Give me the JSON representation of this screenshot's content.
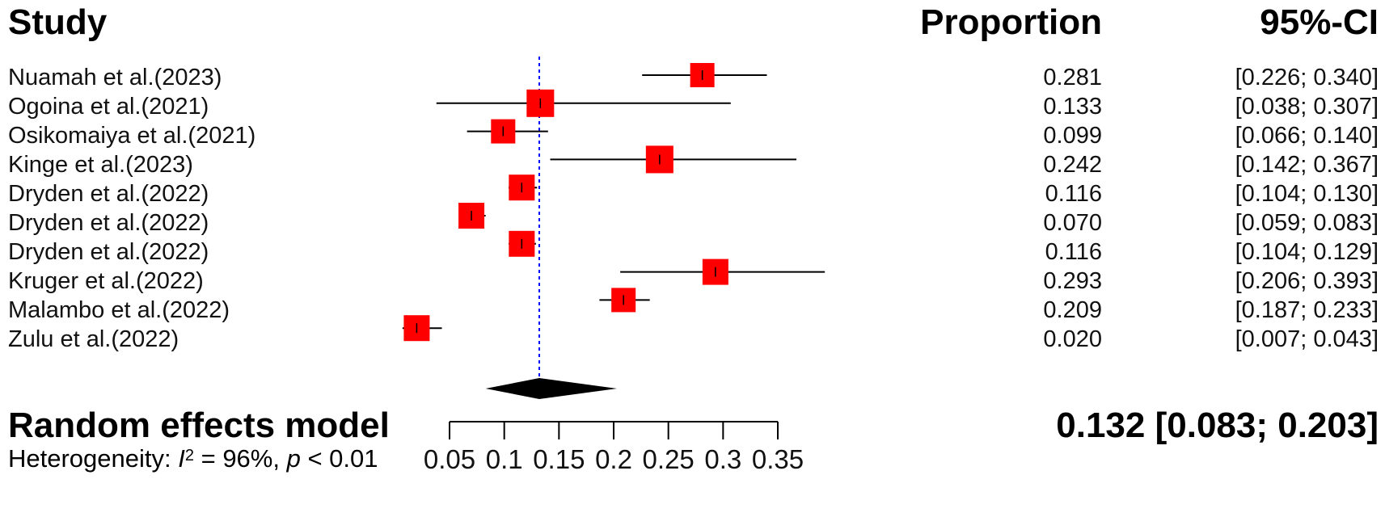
{
  "header": {
    "study": "Study",
    "proportion": "Proportion",
    "ci": "95%-CI"
  },
  "studies": [
    {
      "label": "Nuamah et al.(2023)",
      "value_text": "0.281",
      "ci_text": "[0.226; 0.340]"
    },
    {
      "label": "Ogoina et al.(2021)",
      "value_text": "0.133",
      "ci_text": "[0.038; 0.307]"
    },
    {
      "label": "Osikomaiya et al.(2021)",
      "value_text": "0.099",
      "ci_text": "[0.066; 0.140]"
    },
    {
      "label": "Kinge et al.(2023)",
      "value_text": "0.242",
      "ci_text": "[0.142; 0.367]"
    },
    {
      "label": "Dryden et al.(2022)",
      "value_text": "0.116",
      "ci_text": "[0.104; 0.130]"
    },
    {
      "label": "Dryden et al.(2022)",
      "value_text": "0.070",
      "ci_text": "[0.059; 0.083]"
    },
    {
      "label": "Dryden et al.(2022)",
      "value_text": "0.116",
      "ci_text": "[0.104; 0.129]"
    },
    {
      "label": "Kruger et al.(2022)",
      "value_text": "0.293",
      "ci_text": "[0.206; 0.393]"
    },
    {
      "label": "Malambo et al.(2022)",
      "value_text": "0.209",
      "ci_text": "[0.187; 0.233]"
    },
    {
      "label": "Zulu et al.(2022)",
      "value_text": "0.020",
      "ci_text": "[0.007; 0.043]"
    }
  ],
  "model": {
    "label": "Random effects model",
    "result_text": "0.132 [0.083; 0.203]",
    "heterogeneity_prefix": "Heterogeneity: ",
    "heterogeneity_i": "I",
    "heterogeneity_sup": "2",
    "heterogeneity_mid": " = 96%, ",
    "heterogeneity_p": "p",
    "heterogeneity_suffix": " < 0.01"
  },
  "chart_data": {
    "type": "forest",
    "xlim": [
      0.05,
      0.35
    ],
    "x_ticks": [
      0.05,
      0.1,
      0.15,
      0.2,
      0.25,
      0.3,
      0.35
    ],
    "x_tick_labels": [
      "0.05",
      "0.1",
      "0.15",
      "0.2",
      "0.25",
      "0.3",
      "0.35"
    ],
    "reference_line": 0.132,
    "studies": [
      {
        "study": "Nuamah et al.(2023)",
        "estimate": 0.281,
        "lower": 0.226,
        "upper": 0.34
      },
      {
        "study": "Ogoina et al.(2021)",
        "estimate": 0.133,
        "lower": 0.038,
        "upper": 0.307
      },
      {
        "study": "Osikomaiya et al.(2021)",
        "estimate": 0.099,
        "lower": 0.066,
        "upper": 0.14
      },
      {
        "study": "Kinge et al.(2023)",
        "estimate": 0.242,
        "lower": 0.142,
        "upper": 0.367
      },
      {
        "study": "Dryden et al.(2022)",
        "estimate": 0.116,
        "lower": 0.104,
        "upper": 0.13
      },
      {
        "study": "Dryden et al.(2022)",
        "estimate": 0.07,
        "lower": 0.059,
        "upper": 0.083
      },
      {
        "study": "Dryden et al.(2022)",
        "estimate": 0.116,
        "lower": 0.104,
        "upper": 0.129
      },
      {
        "study": "Kruger et al.(2022)",
        "estimate": 0.293,
        "lower": 0.206,
        "upper": 0.393
      },
      {
        "study": "Malambo et al.(2022)",
        "estimate": 0.209,
        "lower": 0.187,
        "upper": 0.233
      },
      {
        "study": "Zulu et al.(2022)",
        "estimate": 0.02,
        "lower": 0.007,
        "upper": 0.043
      }
    ],
    "pooled": {
      "label": "Random effects model",
      "estimate": 0.132,
      "lower": 0.083,
      "upper": 0.203
    },
    "colors": {
      "box": "#ff0000",
      "ci_line": "#000000",
      "reference_line": "#0000ff",
      "diamond": "#000000"
    }
  }
}
